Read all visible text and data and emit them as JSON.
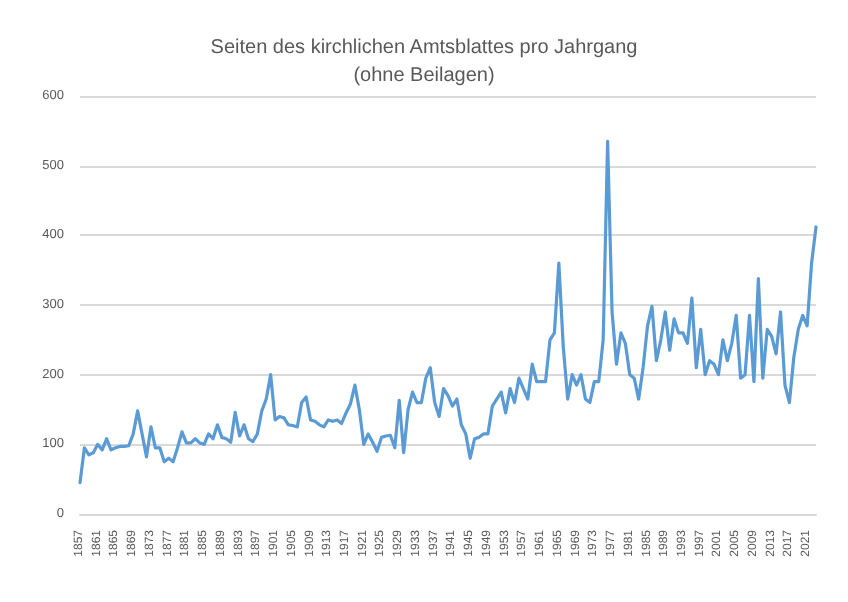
{
  "chart_data": {
    "type": "line",
    "title": "Seiten des kirchlichen Amtsblattes pro Jahrgang\n(ohne Beilagen)",
    "categories": [
      "1857",
      null,
      null,
      null,
      "1861",
      null,
      null,
      null,
      "1865",
      null,
      null,
      null,
      "1869",
      null,
      null,
      null,
      "1873",
      null,
      null,
      null,
      "1877",
      null,
      null,
      null,
      "1881",
      null,
      null,
      null,
      "1885",
      null,
      null,
      null,
      "1889",
      null,
      null,
      null,
      "1893",
      null,
      null,
      null,
      "1897",
      null,
      null,
      null,
      "1901",
      null,
      null,
      null,
      "1905",
      null,
      null,
      null,
      "1909",
      null,
      null,
      null,
      "1913",
      null,
      null,
      null,
      "1917",
      null,
      null,
      null,
      "1921",
      null,
      null,
      null,
      "1925",
      null,
      null,
      null,
      "1929",
      null,
      null,
      null,
      "1933",
      null,
      null,
      null,
      "1937",
      null,
      null,
      null,
      "1941",
      null,
      null,
      null,
      "1945",
      null,
      null,
      null,
      "1949",
      null,
      null,
      null,
      "1953",
      null,
      null,
      null,
      "1957",
      null,
      null,
      null,
      "1961",
      null,
      null,
      null,
      "1965",
      null,
      null,
      null,
      "1969",
      null,
      null,
      null,
      "1973",
      null,
      null,
      null,
      "1977",
      null,
      null,
      null,
      "1981",
      null,
      null,
      null,
      "1985",
      null,
      null,
      null,
      "1989",
      null,
      null,
      null,
      "1993",
      null,
      null,
      null,
      "1997",
      null,
      null,
      null,
      "2001",
      null,
      null,
      null,
      "2005",
      null,
      null,
      null,
      "2009",
      null,
      null,
      null,
      "2013",
      null,
      null,
      null,
      "2017",
      null,
      null,
      null,
      "2021",
      null,
      null
    ],
    "values": [
      45,
      95,
      85,
      88,
      100,
      92,
      108,
      92,
      95,
      97,
      97,
      98,
      115,
      148,
      115,
      82,
      125,
      95,
      95,
      75,
      80,
      75,
      95,
      118,
      102,
      102,
      108,
      102,
      100,
      115,
      108,
      128,
      110,
      108,
      103,
      146,
      112,
      128,
      108,
      104,
      115,
      148,
      165,
      200,
      135,
      140,
      138,
      128,
      127,
      125,
      160,
      168,
      135,
      133,
      128,
      125,
      135,
      133,
      135,
      130,
      145,
      158,
      185,
      150,
      100,
      115,
      103,
      90,
      110,
      112,
      113,
      95,
      163,
      88,
      150,
      175,
      160,
      160,
      195,
      210,
      160,
      140,
      180,
      170,
      155,
      165,
      128,
      115,
      80,
      108,
      110,
      115,
      115,
      155,
      165,
      175,
      145,
      180,
      160,
      195,
      180,
      165,
      215,
      190,
      190,
      190,
      250,
      260,
      360,
      240,
      165,
      200,
      185,
      200,
      165,
      160,
      190,
      190,
      250,
      535,
      290,
      215,
      260,
      245,
      200,
      195,
      165,
      210,
      270,
      298,
      220,
      250,
      290,
      235,
      280,
      260,
      260,
      245,
      310,
      210,
      265,
      200,
      220,
      215,
      200,
      250,
      220,
      245,
      285,
      195,
      200,
      285,
      190,
      338,
      195,
      265,
      255,
      230,
      290,
      185,
      160,
      225,
      265,
      285,
      270,
      360,
      412
    ],
    "color": "#5b9bd5",
    "ylim": [
      0,
      600
    ],
    "yticks": [
      0,
      100,
      200,
      300,
      400,
      500,
      600
    ],
    "grid": "y",
    "marker": "none",
    "line_style": "solid"
  }
}
